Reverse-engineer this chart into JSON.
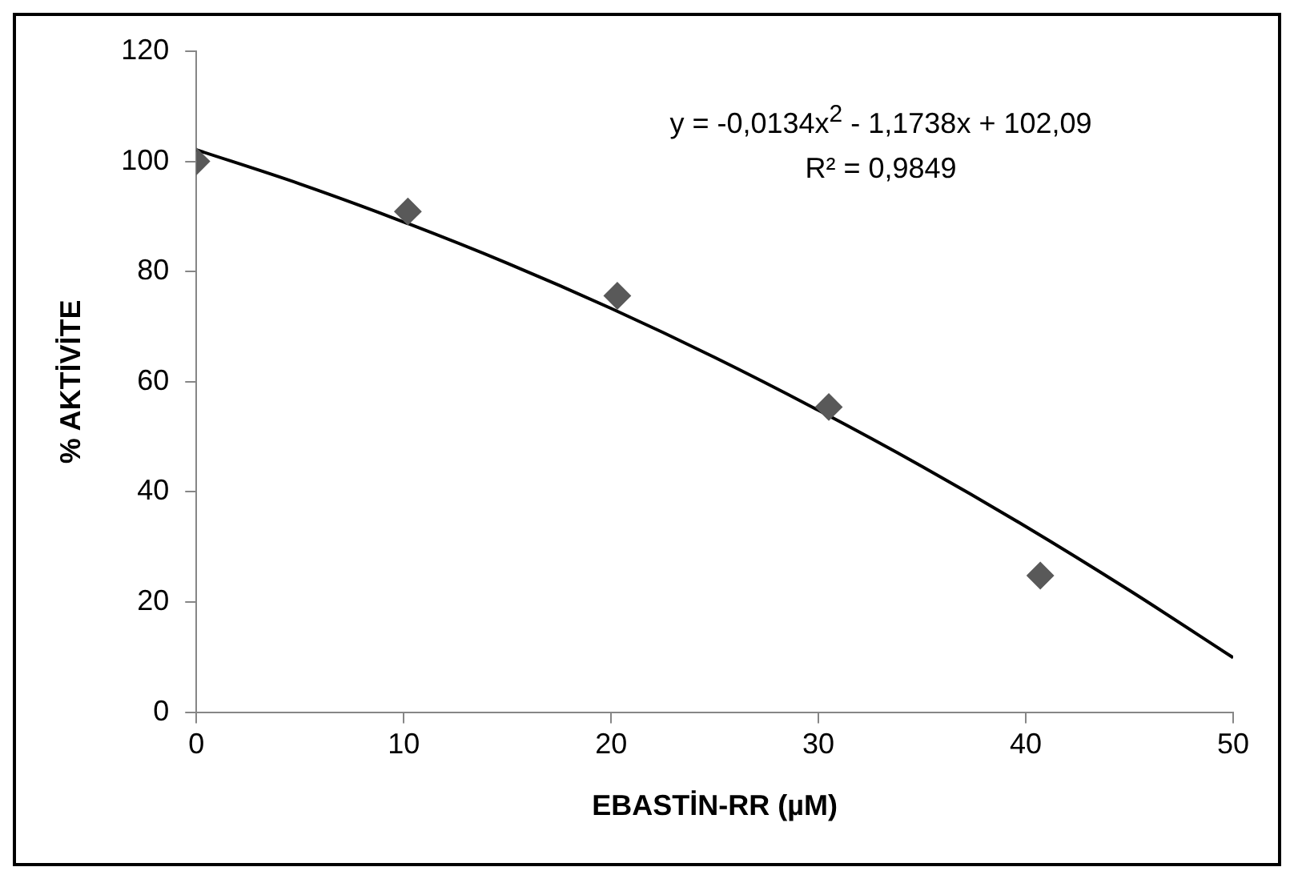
{
  "chart_data": {
    "type": "scatter",
    "xlabel": "EBASTİN-RR (µM)",
    "ylabel": "% AKTİVİTE",
    "marker": "diamond",
    "legend": false,
    "grid": false,
    "xlim": [
      0,
      50
    ],
    "xticks": [
      0,
      10,
      20,
      30,
      40,
      50
    ],
    "ylim": [
      0,
      120
    ],
    "yticks": [
      0,
      20,
      40,
      60,
      80,
      100,
      120
    ],
    "annotations": [
      "y = -0,0134x$^{2}$ - 1,1738x + 102,09",
      "R² = 0,9849"
    ],
    "series": [
      {
        "type": "scatter",
        "color": "#595959",
        "x": [
          0,
          10.2,
          20.3,
          30.5,
          40.7
        ],
        "values": [
          100,
          90.9,
          75.6,
          55.4,
          24.8
        ]
      },
      {
        "type": "line",
        "color": "#000000",
        "marker": "none",
        "x": [
          0,
          5,
          10,
          15,
          20,
          25,
          30,
          35,
          40,
          45,
          50
        ],
        "values": [
          102.1,
          95.9,
          89.0,
          81.5,
          73.3,
          64.4,
          54.8,
          44.6,
          33.7,
          22.1,
          9.9
        ]
      }
    ]
  }
}
